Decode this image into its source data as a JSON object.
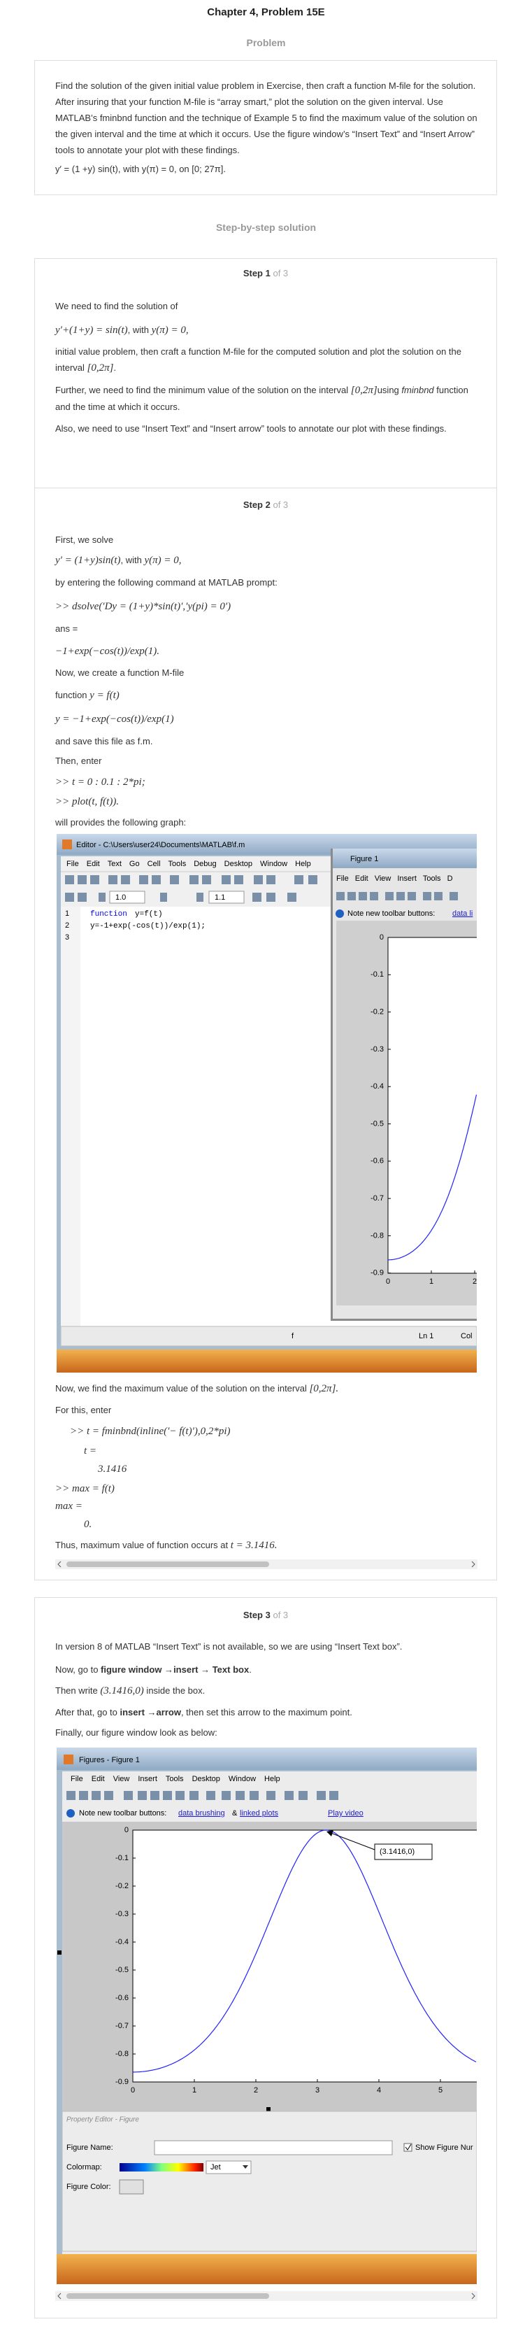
{
  "header": {
    "title": "Chapter 4, Problem 15E",
    "subtitle": "Problem"
  },
  "problem": {
    "text": "Find the solution of the given initial value problem in Exercise, then craft a function M-file for the solution. After insuring that your function M-file is “array smart,” plot the solution on the given interval. Use MATLAB’s fminbnd function and the technique of Example 5 to find the maximum value of the solution on the given interval and the time at which it occurs. Use the figure window’s “Insert Text” and “Insert Arrow” tools to annotate your plot with these findings.",
    "equation": "y′ = (1 +y) sin(t), with y(π) = 0, on [0; 27π]."
  },
  "solution_heading": "Step-by-step solution",
  "steps": [
    {
      "label": "Step 1",
      "count": "of 3",
      "lines": [
        [
          {
            "text": "We need to find the solution of",
            "style": "plain"
          }
        ],
        [
          {
            "text": "y′+(1+y) = sin(t)",
            "style": "math"
          },
          {
            "text": ", with ",
            "style": "plain"
          },
          {
            "text": "y(π) = 0,",
            "style": "math"
          }
        ],
        [
          {
            "text": "initial value problem, then craft a function M-file for the computed solution and plot the solution on the interval ",
            "style": "plain"
          },
          {
            "text": "[0,2π]",
            "style": "math"
          },
          {
            "text": ".",
            "style": "plain"
          }
        ],
        [
          {
            "text": "Further, we need to find the minimum value of the solution on the interval ",
            "style": "plain"
          },
          {
            "text": "[0,2π]",
            "style": "math"
          },
          {
            "text": "using ",
            "style": "plain"
          },
          {
            "text": "fminbnd",
            "style": "italic"
          },
          {
            "text": " function and the time at which it occurs.",
            "style": "plain"
          }
        ],
        [
          {
            "text": "Also, we need to use “Insert Text” and “Insert arrow” tools to annotate our plot with these findings.",
            "style": "plain"
          }
        ]
      ]
    },
    {
      "label": "Step 2",
      "count": "of 3",
      "lines": [
        [
          {
            "text": "First, we solve",
            "style": "plain"
          }
        ],
        [
          {
            "text": "y′ = (1+y)sin(t)",
            "style": "math"
          },
          {
            "text": ", with ",
            "style": "plain"
          },
          {
            "text": "y(π) = 0,",
            "style": "math"
          }
        ],
        [
          {
            "text": "by entering the following command at MATLAB prompt:",
            "style": "plain"
          }
        ],
        [
          {
            "text": ">> dsolve(′Dy = (1+y)*sin(t)′,′y(pi) = 0′)",
            "style": "math"
          }
        ],
        [
          {
            "text": "ans =",
            "style": "plain"
          }
        ],
        [
          {
            "text": "−1+exp(−cos(t))/exp(1).",
            "style": "math"
          }
        ],
        [
          {
            "text": "Now, we create a function M-file",
            "style": "plain"
          }
        ],
        [
          {
            "text": "function ",
            "style": "plain"
          },
          {
            "text": "y = f(t)",
            "style": "math"
          }
        ],
        [
          {
            "text": "y = −1+exp(−cos(t))/exp(1)",
            "style": "math"
          }
        ],
        [
          {
            "text": "and save this file as f.m.",
            "style": "plain"
          }
        ],
        [
          {
            "text": "Then, enter",
            "style": "plain"
          }
        ],
        [
          {
            "text": ">> t = 0 : 0.1 : 2*pi;",
            "style": "math"
          }
        ],
        [
          {
            "text": ">> plot(t, f(t)).",
            "style": "math"
          }
        ],
        [
          {
            "text": "will provides the following graph:",
            "style": "plain"
          }
        ],
        [
          {
            "text": "Now, we find the maximum value of the solution on the interval ",
            "style": "plain"
          },
          {
            "text": "[0,2π].",
            "style": "math"
          }
        ],
        [
          {
            "text": "For this, enter",
            "style": "plain"
          }
        ],
        [
          {
            "text": ">> t = fminbnd(inline(′− f(t)′),0,2*pi)",
            "style": "math"
          }
        ],
        [
          {
            "text": "t =",
            "style": "math"
          }
        ],
        [
          {
            "text": "3.1416",
            "style": "math"
          }
        ],
        [
          {
            "text": ">> max = f(t)",
            "style": "math"
          }
        ],
        [
          {
            "text": "max =",
            "style": "math"
          }
        ],
        [
          {
            "text": "0.",
            "style": "math"
          }
        ],
        [
          {
            "text": "Thus, maximum value of function occurs at ",
            "style": "plain"
          },
          {
            "text": "t = 3.1416.",
            "style": "math"
          }
        ]
      ],
      "figure": {
        "editor_title": "Editor - C:\\Users\\user24\\Documents\\MATLAB\\f.m",
        "editor_menu": [
          "File",
          "Edit",
          "Text",
          "Go",
          "Cell",
          "Tools",
          "Debug",
          "Desktop",
          "Window",
          "Help"
        ],
        "toolbar_values": [
          "1.0",
          "1.1"
        ],
        "line_numbers": [
          "1",
          "2",
          "3"
        ],
        "code_keyword": "function",
        "code": [
          "y=f(t)",
          "y=-1+exp(-cos(t))/exp(1);"
        ],
        "figure_title": "Figure 1",
        "figure_menu": [
          "File",
          "Edit",
          "View",
          "Insert",
          "Tools",
          "D"
        ],
        "note": "Note new toolbar buttons:",
        "note_link": "data li",
        "yticks": [
          "0",
          "-0.1",
          "-0.2",
          "-0.3",
          "-0.4",
          "-0.5",
          "-0.6",
          "-0.7",
          "-0.8",
          "-0.9"
        ],
        "xticks": [
          "0",
          "1",
          "2"
        ],
        "status": [
          "f",
          "Ln 1",
          "Col"
        ]
      }
    },
    {
      "label": "Step 3",
      "count": "of 3",
      "lines": [
        [
          {
            "text": "In version 8 of MATLAB “Insert Text” is not available, so we are using “Insert Text box”.",
            "style": "plain"
          }
        ],
        [
          {
            "text": "Now, go to ",
            "style": "plain"
          },
          {
            "text": "figure window",
            "style": "bold"
          },
          {
            "text": " →",
            "style": "plain"
          },
          {
            "text": "insert",
            "style": "bold"
          },
          {
            "text": " → ",
            "style": "plain"
          },
          {
            "text": "Text box",
            "style": "bold"
          },
          {
            "text": ".",
            "style": "plain"
          }
        ],
        [
          {
            "text": "Then write ",
            "style": "plain"
          },
          {
            "text": "(3.1416,0)",
            "style": "math"
          },
          {
            "text": " inside the box.",
            "style": "plain"
          }
        ],
        [
          {
            "text": "After that, go to ",
            "style": "plain"
          },
          {
            "text": "insert",
            "style": "bold"
          },
          {
            "text": " →",
            "style": "plain"
          },
          {
            "text": "arrow",
            "style": "bold"
          },
          {
            "text": ", then set this arrow to the maximum point.",
            "style": "plain"
          }
        ],
        [
          {
            "text": "Finally, our figure window look as below:",
            "style": "plain"
          }
        ]
      ],
      "figure": {
        "title": "Figures - Figure 1",
        "menu": [
          "File",
          "Edit",
          "View",
          "Insert",
          "Tools",
          "Desktop",
          "Window",
          "Help"
        ],
        "note": "Note new toolbar buttons:",
        "links": [
          "data brushing",
          "&",
          "linked plots",
          "Play video"
        ],
        "yticks": [
          "0",
          "-0.1",
          "-0.2",
          "-0.3",
          "-0.4",
          "-0.5",
          "-0.6",
          "-0.7",
          "-0.8",
          "-0.9"
        ],
        "xticks": [
          "0",
          "1",
          "2",
          "3",
          "4",
          "5"
        ],
        "annotation": "(3.1416,0)",
        "property_title": "Property Editor - Figure",
        "figure_name": "Figure Name:",
        "show_number": "Show Figure Nur",
        "colormap": "Colormap:",
        "colormap_value": "Jet",
        "figure_color": "Figure Color:"
      }
    }
  ]
}
